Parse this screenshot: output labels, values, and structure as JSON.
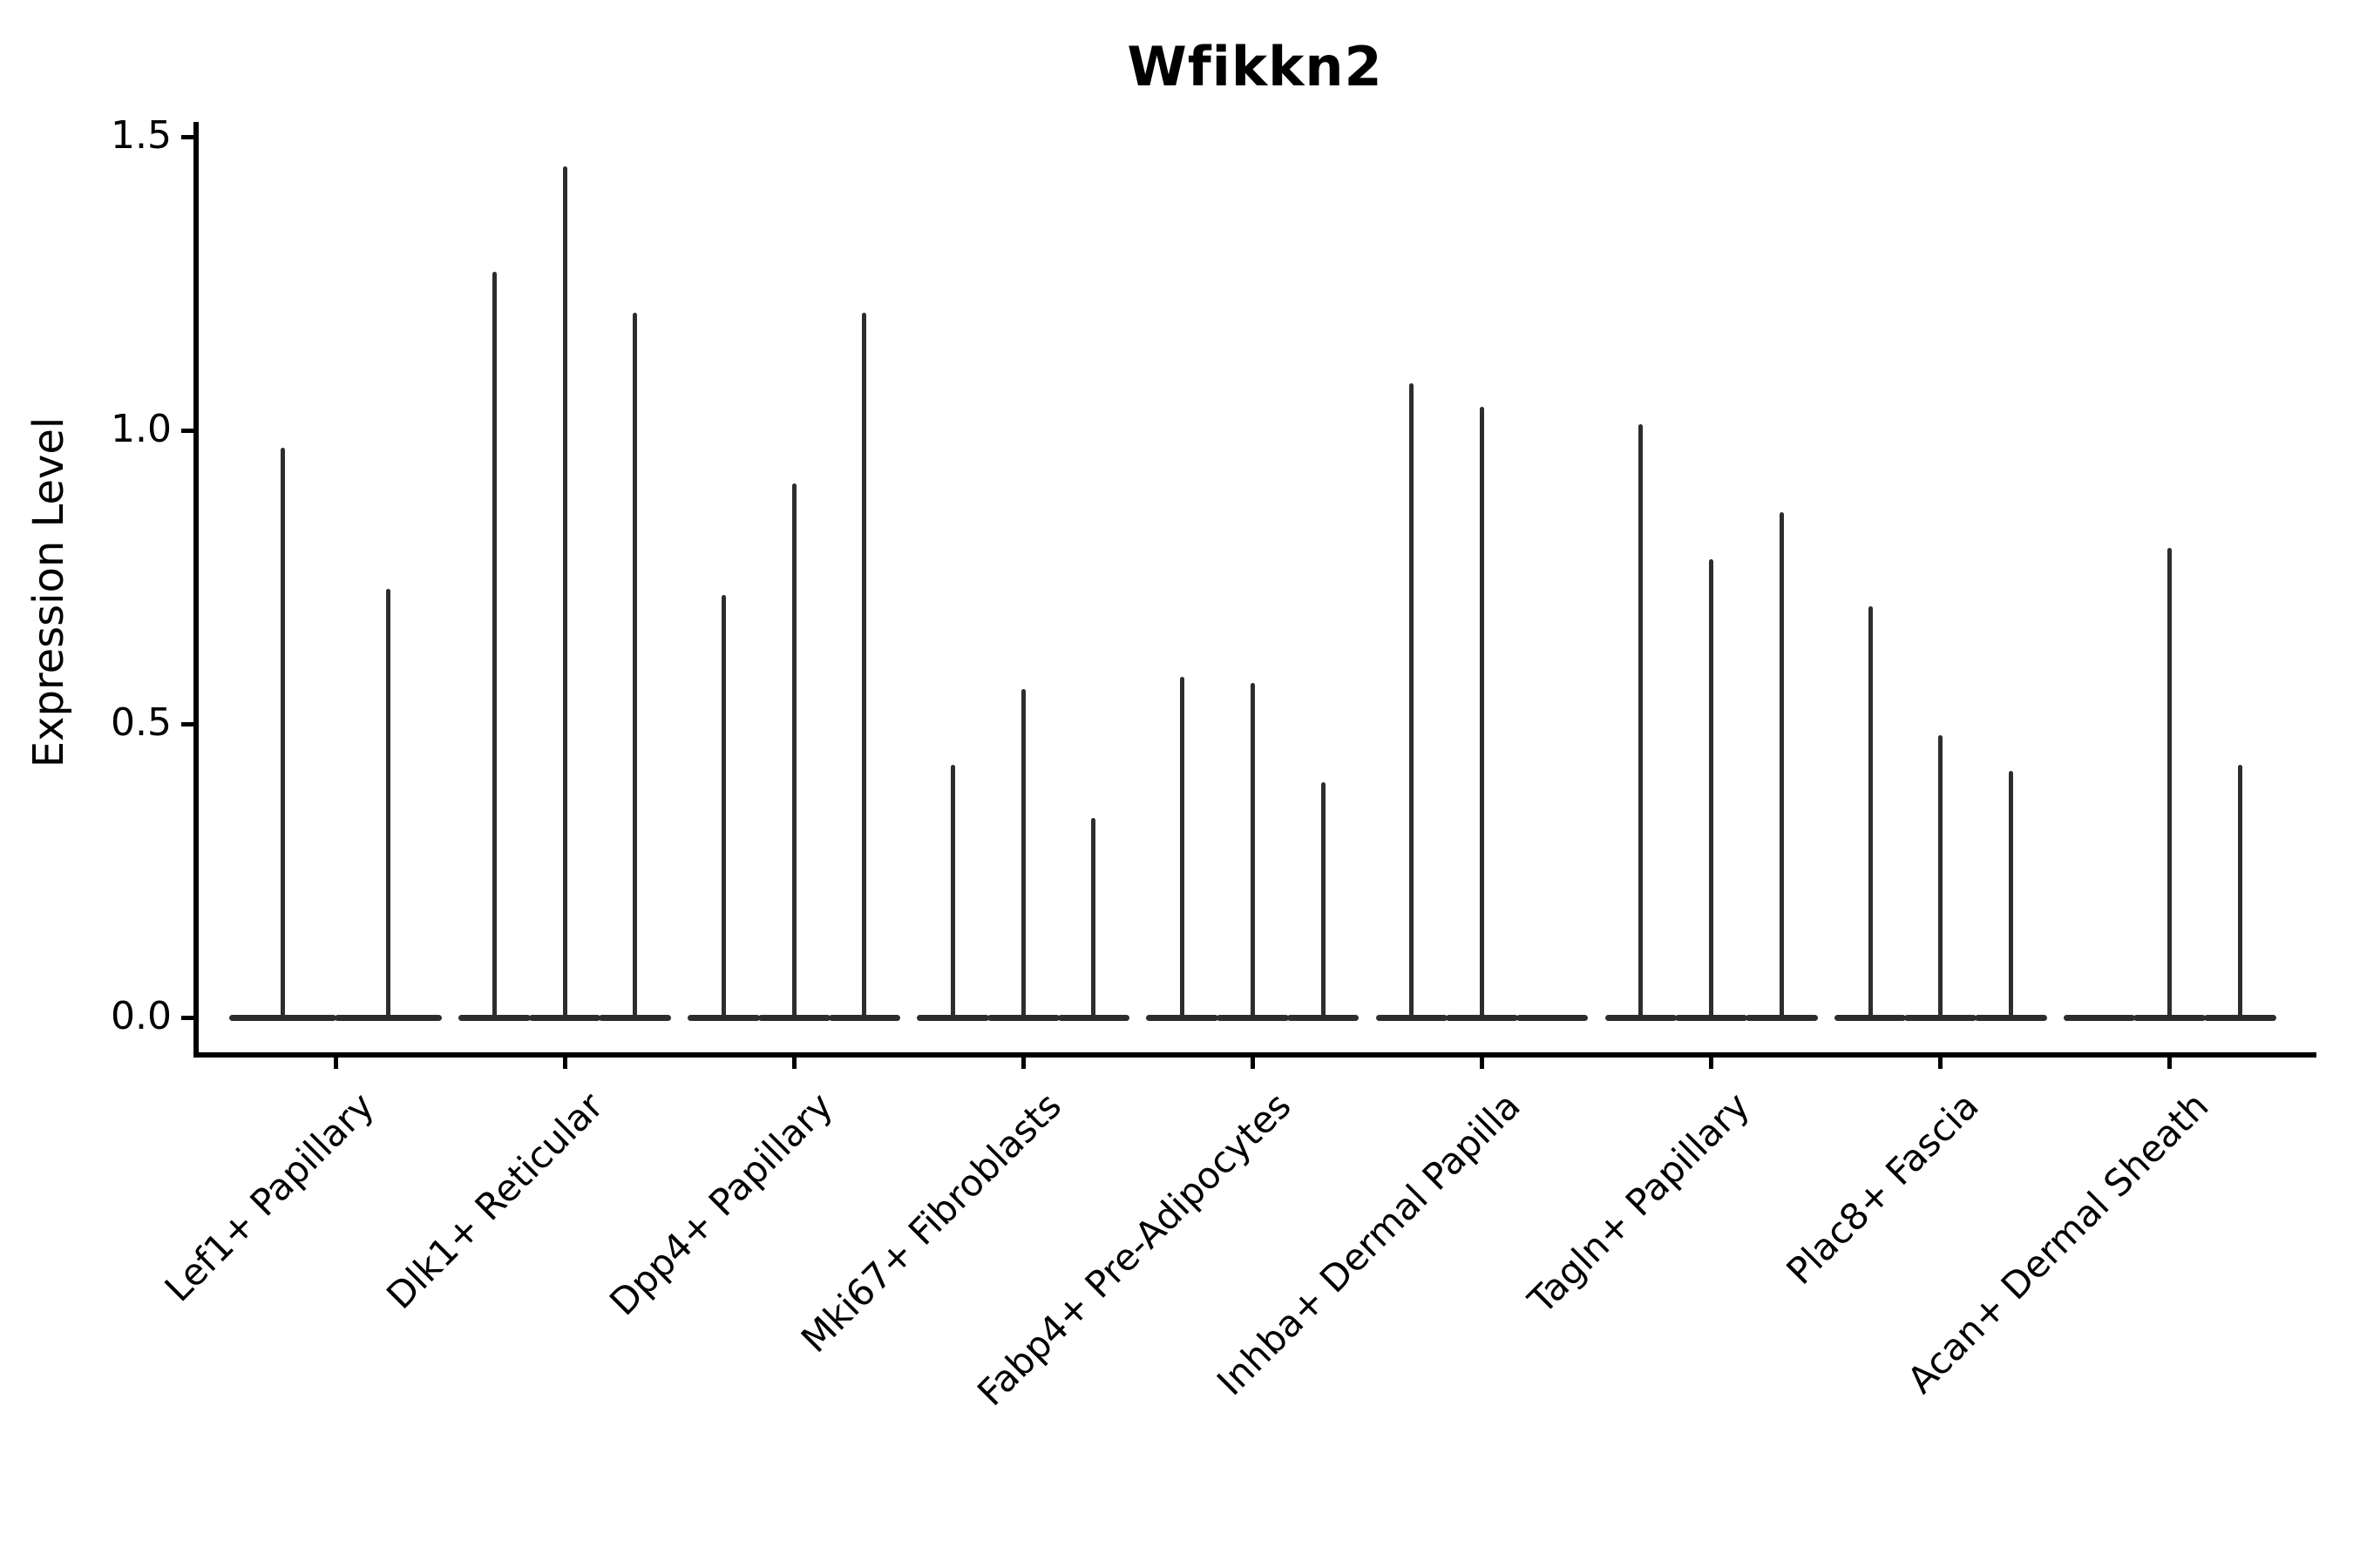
{
  "chart_data": {
    "type": "violin",
    "title": "Wfikkn2",
    "xlabel": "",
    "ylabel": "Expression Level",
    "ylim": [
      0,
      1.5
    ],
    "y_ticks": [
      0.0,
      0.5,
      1.0,
      1.5
    ],
    "y_tick_labels": [
      "0.0",
      "0.5",
      "1.0",
      "1.5"
    ],
    "x_tick_rotation": 45,
    "grid": false,
    "legend": "none",
    "violin_color": "#2d2d2d",
    "axis_color": "#000000",
    "categories": [
      "Lef1+ Papillary",
      "Dlk1+ Reticular",
      "Dpp4+ Papillary",
      "Mki67+ Fibroblasts",
      "Fabp4+ Pre-Adipocytes",
      "Inhba+ Dermal Papilla",
      "Tagln+ Papillary",
      "Plac8+ Fascia",
      "Acan+ Dermal Sheath"
    ],
    "series": [
      {
        "category": "Lef1+ Papillary",
        "violin_max_values": [
          0.97,
          0.73
        ]
      },
      {
        "category": "Dlk1+ Reticular",
        "violin_max_values": [
          1.27,
          1.45,
          1.2
        ]
      },
      {
        "category": "Dpp4+ Papillary",
        "violin_max_values": [
          0.72,
          0.91,
          1.2
        ]
      },
      {
        "category": "Mki67+ Fibroblasts",
        "violin_max_values": [
          0.43,
          0.56,
          0.34
        ]
      },
      {
        "category": "Fabp4+ Pre-Adipocytes",
        "violin_max_values": [
          0.58,
          0.57,
          0.4
        ]
      },
      {
        "category": "Inhba+ Dermal Papilla",
        "violin_max_values": [
          1.08,
          1.04,
          0
        ]
      },
      {
        "category": "Tagln+ Papillary",
        "violin_max_values": [
          1.01,
          0.78,
          0.86
        ]
      },
      {
        "category": "Plac8+ Fascia",
        "violin_max_values": [
          0.7,
          0.48,
          0.42
        ]
      },
      {
        "category": "Acan+ Dermal Sheath",
        "violin_max_values": [
          0,
          0.8,
          0.43
        ]
      }
    ]
  }
}
